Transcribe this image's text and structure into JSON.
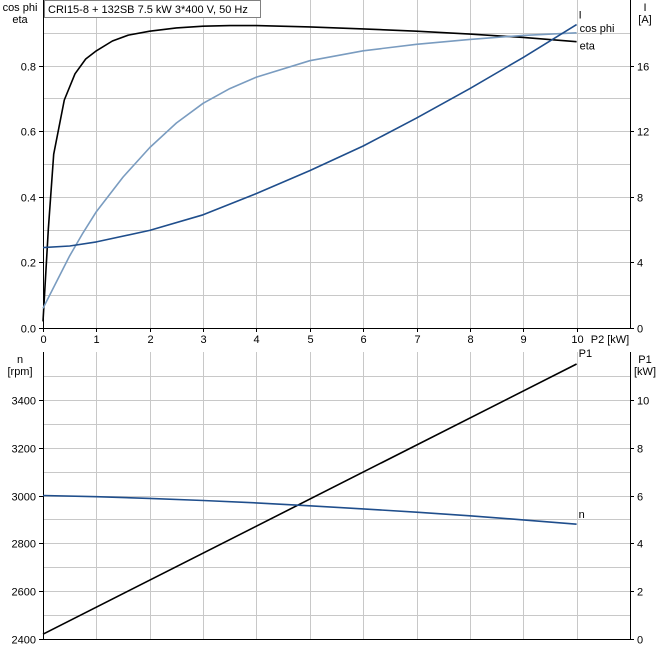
{
  "chart_data": [
    {
      "type": "line",
      "title": "CRI15-8 + 132SB   7.5 kW   3*400 V, 50 Hz",
      "xlabel": "P2 [kW]",
      "x_ticks": [
        0,
        1,
        2,
        3,
        4,
        5,
        6,
        7,
        8,
        9,
        10
      ],
      "xlim": [
        0,
        11
      ],
      "left_axis": {
        "label_line1": "cos phi",
        "label_line2": "eta",
        "ylim": [
          0,
          1
        ],
        "ticks": [
          0.0,
          0.2,
          0.4,
          0.6,
          0.8
        ],
        "tick_labels": [
          "0.0",
          "0.2",
          "0.4",
          "0.6",
          "0.8"
        ]
      },
      "right_axis": {
        "label_line1": "I",
        "label_line2": "[A]",
        "ylim": [
          0,
          20
        ],
        "ticks": [
          0,
          4,
          8,
          12,
          16
        ],
        "tick_labels": [
          "0",
          "4",
          "8",
          "12",
          "16"
        ]
      },
      "grid": true,
      "series": [
        {
          "name": "eta",
          "axis": "left",
          "color": "#000000",
          "x": [
            0,
            0.1,
            0.2,
            0.4,
            0.6,
            0.8,
            1.0,
            1.3,
            1.6,
            2.0,
            2.5,
            3.0,
            3.5,
            4.0,
            5.0,
            6.0,
            7.0,
            8.0,
            9.0,
            10.0
          ],
          "y": [
            0.02,
            0.3,
            0.53,
            0.695,
            0.775,
            0.82,
            0.845,
            0.875,
            0.893,
            0.905,
            0.915,
            0.92,
            0.922,
            0.922,
            0.918,
            0.912,
            0.905,
            0.896,
            0.886,
            0.873
          ]
        },
        {
          "name": "cos phi",
          "axis": "left",
          "color": "#7a9cc0",
          "x": [
            0,
            0.25,
            0.5,
            0.75,
            1.0,
            1.5,
            2.0,
            2.5,
            3.0,
            3.5,
            4.0,
            5.0,
            6.0,
            7.0,
            8.0,
            9.0,
            10.0
          ],
          "y": [
            0.06,
            0.14,
            0.22,
            0.29,
            0.355,
            0.46,
            0.55,
            0.625,
            0.685,
            0.73,
            0.765,
            0.815,
            0.845,
            0.865,
            0.88,
            0.892,
            0.9
          ]
        },
        {
          "name": "I",
          "axis": "right",
          "color": "#1f4e8c",
          "x": [
            0,
            0.5,
            1,
            2,
            3,
            4,
            5,
            6,
            7,
            8,
            9,
            10
          ],
          "y": [
            4.9,
            5.0,
            5.25,
            5.95,
            6.9,
            8.2,
            9.6,
            11.1,
            12.8,
            14.6,
            16.5,
            18.5
          ]
        }
      ]
    },
    {
      "type": "line",
      "xlim": [
        0,
        11
      ],
      "left_axis": {
        "label_line1": "n",
        "label_line2": "[rpm]",
        "ylim": [
          2400,
          3600
        ],
        "ticks": [
          2400,
          2600,
          2800,
          3000,
          3200,
          3400
        ],
        "tick_labels": [
          "2400",
          "2600",
          "2800",
          "3000",
          "3200",
          "3400"
        ]
      },
      "right_axis": {
        "label_line1": "P1",
        "label_line2": "[kW]",
        "ylim": [
          0,
          12
        ],
        "ticks": [
          0,
          2,
          4,
          6,
          8,
          10
        ],
        "tick_labels": [
          "0",
          "2",
          "4",
          "6",
          "8",
          "10"
        ]
      },
      "grid": true,
      "series": [
        {
          "name": "P1",
          "axis": "right",
          "color": "#000000",
          "x": [
            0,
            10
          ],
          "y": [
            0.2,
            11.5
          ]
        },
        {
          "name": "n",
          "axis": "left",
          "color": "#1f4e8c",
          "x": [
            0,
            1,
            2,
            3,
            4,
            5,
            6,
            7,
            8,
            9,
            10
          ],
          "y": [
            3000,
            2995,
            2988,
            2979,
            2969,
            2957,
            2944,
            2930,
            2915,
            2898,
            2880
          ]
        }
      ]
    }
  ]
}
